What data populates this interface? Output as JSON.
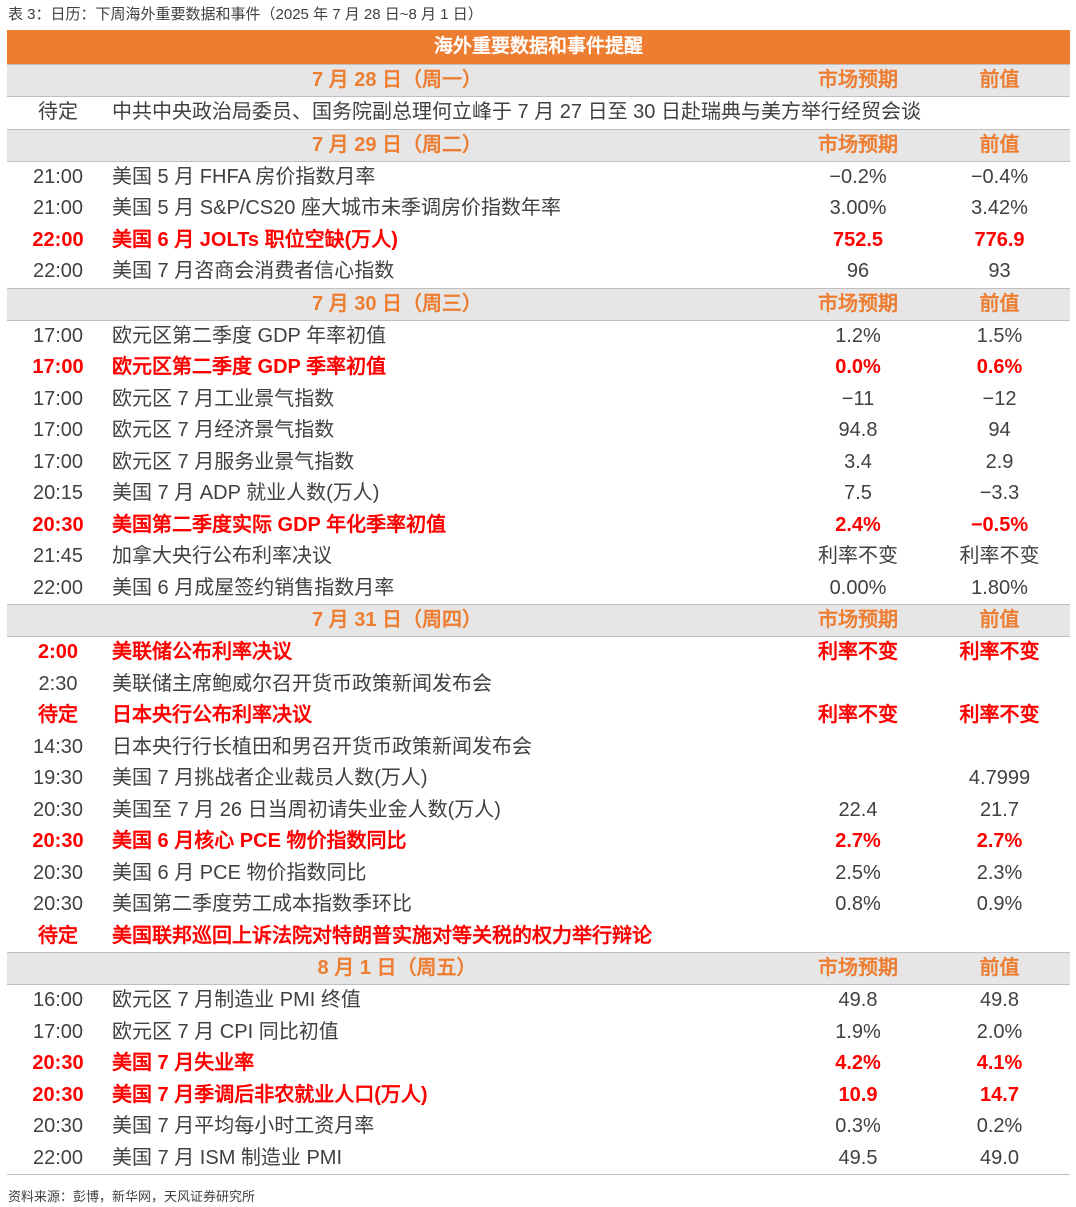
{
  "title": "表 3：日历：下周海外重要数据和事件（2025 年 7 月 28 日~8 月 1 日）",
  "banner": "海外重要数据和事件提醒",
  "colors": {
    "accent": "#ed7d31",
    "highlight": "#ff0000",
    "header_bg": "#e7e6e6"
  },
  "sections": [
    {
      "date": "7 月 28 日（周一）",
      "forecast_label": "市场预期",
      "previous_label": "前值",
      "rows": [
        {
          "time": "待定",
          "event": "中共中央政治局委员、国务院副总理何立峰于 7 月 27 日至 30 日赴瑞典与美方举行经贸会谈",
          "forecast": "",
          "previous": "",
          "highlight": false
        }
      ]
    },
    {
      "date": "7 月 29 日（周二）",
      "forecast_label": "市场预期",
      "previous_label": "前值",
      "rows": [
        {
          "time": "21:00",
          "event": "美国 5 月 FHFA 房价指数月率",
          "forecast": "−0.2%",
          "previous": "−0.4%",
          "highlight": false
        },
        {
          "time": "21:00",
          "event": "美国 5 月 S&P/CS20 座大城市未季调房价指数年率",
          "forecast": "3.00%",
          "previous": "3.42%",
          "highlight": false
        },
        {
          "time": "22:00",
          "event": "美国 6 月 JOLTs 职位空缺(万人)",
          "forecast": "752.5",
          "previous": "776.9",
          "highlight": true
        },
        {
          "time": "22:00",
          "event": "美国 7 月咨商会消费者信心指数",
          "forecast": "96",
          "previous": "93",
          "highlight": false
        }
      ]
    },
    {
      "date": "7 月 30 日（周三）",
      "forecast_label": "市场预期",
      "previous_label": "前值",
      "rows": [
        {
          "time": "17:00",
          "event": "欧元区第二季度 GDP 年率初值",
          "forecast": "1.2%",
          "previous": "1.5%",
          "highlight": false
        },
        {
          "time": "17:00",
          "event": "欧元区第二季度 GDP 季率初值",
          "forecast": "0.0%",
          "previous": "0.6%",
          "highlight": true
        },
        {
          "time": "17:00",
          "event": "欧元区 7 月工业景气指数",
          "forecast": "−11",
          "previous": "−12",
          "highlight": false
        },
        {
          "time": "17:00",
          "event": "欧元区 7 月经济景气指数",
          "forecast": "94.8",
          "previous": "94",
          "highlight": false
        },
        {
          "time": "17:00",
          "event": "欧元区 7 月服务业景气指数",
          "forecast": "3.4",
          "previous": "2.9",
          "highlight": false
        },
        {
          "time": "20:15",
          "event": "美国 7 月 ADP 就业人数(万人)",
          "forecast": "7.5",
          "previous": "−3.3",
          "highlight": false
        },
        {
          "time": "20:30",
          "event": "美国第二季度实际 GDP 年化季率初值",
          "forecast": "2.4%",
          "previous": "−0.5%",
          "highlight": true
        },
        {
          "time": "21:45",
          "event": "加拿大央行公布利率决议",
          "forecast": "利率不变",
          "previous": "利率不变",
          "highlight": false
        },
        {
          "time": "22:00",
          "event": "美国 6 月成屋签约销售指数月率",
          "forecast": "0.00%",
          "previous": "1.80%",
          "highlight": false
        }
      ]
    },
    {
      "date": "7 月 31 日（周四）",
      "forecast_label": "市场预期",
      "previous_label": "前值",
      "rows": [
        {
          "time": "2:00",
          "event": "美联储公布利率决议",
          "forecast": "利率不变",
          "previous": "利率不变",
          "highlight": true
        },
        {
          "time": "2:30",
          "event": "美联储主席鲍威尔召开货币政策新闻发布会",
          "forecast": "",
          "previous": "",
          "highlight": false
        },
        {
          "time": "待定",
          "event": "日本央行公布利率决议",
          "forecast": "利率不变",
          "previous": "利率不变",
          "highlight": true
        },
        {
          "time": "14:30",
          "event": "日本央行行长植田和男召开货币政策新闻发布会",
          "forecast": "",
          "previous": "",
          "highlight": false
        },
        {
          "time": "19:30",
          "event": "美国 7 月挑战者企业裁员人数(万人)",
          "forecast": "",
          "previous": "4.7999",
          "highlight": false
        },
        {
          "time": "20:30",
          "event": "美国至 7 月 26 日当周初请失业金人数(万人)",
          "forecast": "22.4",
          "previous": "21.7",
          "highlight": false
        },
        {
          "time": "20:30",
          "event": "美国 6 月核心 PCE 物价指数同比",
          "forecast": "2.7%",
          "previous": "2.7%",
          "highlight": true
        },
        {
          "time": "20:30",
          "event": "美国 6 月 PCE 物价指数同比",
          "forecast": "2.5%",
          "previous": "2.3%",
          "highlight": false
        },
        {
          "time": "20:30",
          "event": "美国第二季度劳工成本指数季环比",
          "forecast": "0.8%",
          "previous": "0.9%",
          "highlight": false
        },
        {
          "time": "待定",
          "event": "美国联邦巡回上诉法院对特朗普实施对等关税的权力举行辩论",
          "forecast": "",
          "previous": "",
          "highlight": true
        }
      ]
    },
    {
      "date": "8 月 1 日（周五）",
      "forecast_label": "市场预期",
      "previous_label": "前值",
      "rows": [
        {
          "time": "16:00",
          "event": "欧元区 7 月制造业 PMI 终值",
          "forecast": "49.8",
          "previous": "49.8",
          "highlight": false
        },
        {
          "time": "17:00",
          "event": "欧元区 7 月 CPI 同比初值",
          "forecast": "1.9%",
          "previous": "2.0%",
          "highlight": false
        },
        {
          "time": "20:30",
          "event": "美国 7 月失业率",
          "forecast": "4.2%",
          "previous": "4.1%",
          "highlight": true
        },
        {
          "time": "20:30",
          "event": "美国 7 月季调后非农就业人口(万人)",
          "forecast": "10.9",
          "previous": "14.7",
          "highlight": true
        },
        {
          "time": "20:30",
          "event": "美国 7 月平均每小时工资月率",
          "forecast": "0.3%",
          "previous": "0.2%",
          "highlight": false
        },
        {
          "time": "22:00",
          "event": "美国 7 月 ISM 制造业 PMI",
          "forecast": "49.5",
          "previous": "49.0",
          "highlight": false
        }
      ]
    }
  ],
  "footer": "资料来源：彭博，新华网，天风证券研究所"
}
